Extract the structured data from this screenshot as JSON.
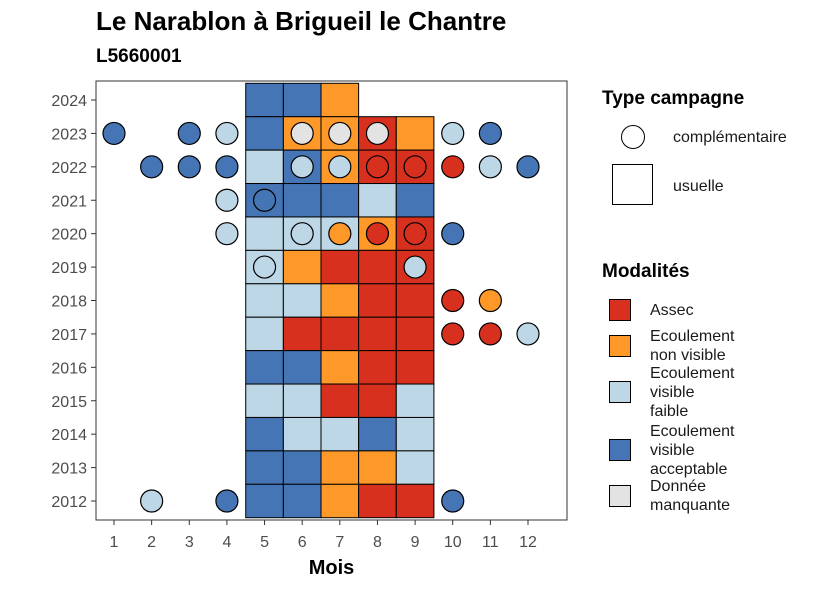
{
  "title": "Le Narablon à Brigueil le Chantre",
  "subtitle": "L5660001",
  "chart_data": {
    "type": "heatmap",
    "title": "Le Narablon à Brigueil le Chantre",
    "subtitle": "L5660001",
    "xlabel": "Mois",
    "ylabel": "",
    "x_ticks": [
      1,
      2,
      3,
      4,
      5,
      6,
      7,
      8,
      9,
      10,
      11,
      12
    ],
    "y_ticks": [
      2012,
      2013,
      2014,
      2015,
      2016,
      2017,
      2018,
      2019,
      2020,
      2021,
      2022,
      2023,
      2024
    ],
    "legend_position": "right",
    "grid": false,
    "categories": {
      "assec": {
        "label": "Assec",
        "color": "#D7301F"
      },
      "ecoulement_non_visible": {
        "label": "Ecoulement non visible",
        "color": "#FE9929"
      },
      "ecoulement_visible_faible": {
        "label": "Ecoulement visible faible",
        "color": "#BDD7E7"
      },
      "ecoulement_visible_acceptable": {
        "label": "Ecoulement visible acceptable",
        "color": "#4575B4"
      },
      "donnee_manquante": {
        "label": "Donnée manquante",
        "color": "#E3E3E3"
      }
    },
    "legend_modalites_title": "Modalités",
    "legend_modalites": [
      {
        "key": "assec",
        "lines": [
          "Assec"
        ]
      },
      {
        "key": "ecoulement_non_visible",
        "lines": [
          "Ecoulement",
          "non visible"
        ]
      },
      {
        "key": "ecoulement_visible_faible",
        "lines": [
          "Ecoulement",
          "visible",
          "faible"
        ]
      },
      {
        "key": "ecoulement_visible_acceptable",
        "lines": [
          "Ecoulement",
          "visible",
          "acceptable"
        ]
      },
      {
        "key": "donnee_manquante",
        "lines": [
          "Donnée",
          "manquante"
        ]
      }
    ],
    "legend_campagne_title": "Type campagne",
    "legend_campagne": [
      {
        "shape": "circle",
        "label": "complémentaire"
      },
      {
        "shape": "square",
        "label": "usuelle"
      }
    ],
    "usuelle": [
      {
        "year": 2024,
        "months": [
          [
            "ecoulement_visible_acceptable",
            5
          ],
          [
            "ecoulement_visible_acceptable",
            6
          ],
          [
            "ecoulement_non_visible",
            7
          ]
        ]
      },
      {
        "year": 2023,
        "months": [
          [
            "ecoulement_visible_acceptable",
            5
          ],
          [
            "ecoulement_non_visible",
            6
          ],
          [
            "ecoulement_non_visible",
            7
          ],
          [
            "assec",
            8
          ],
          [
            "ecoulement_non_visible",
            9
          ]
        ]
      },
      {
        "year": 2022,
        "months": [
          [
            "ecoulement_visible_faible",
            5
          ],
          [
            "ecoulement_visible_acceptable",
            6
          ],
          [
            "ecoulement_non_visible",
            7
          ],
          [
            "assec",
            8
          ],
          [
            "assec",
            9
          ]
        ]
      },
      {
        "year": 2021,
        "months": [
          [
            "ecoulement_visible_acceptable",
            5
          ],
          [
            "ecoulement_visible_acceptable",
            6
          ],
          [
            "ecoulement_visible_acceptable",
            7
          ],
          [
            "ecoulement_visible_faible",
            8
          ],
          [
            "ecoulement_visible_acceptable",
            9
          ]
        ]
      },
      {
        "year": 2020,
        "months": [
          [
            "ecoulement_visible_faible",
            5
          ],
          [
            "ecoulement_visible_faible",
            6
          ],
          [
            "ecoulement_visible_faible",
            7
          ],
          [
            "ecoulement_non_visible",
            8
          ],
          [
            "assec",
            9
          ]
        ]
      },
      {
        "year": 2019,
        "months": [
          [
            "ecoulement_visible_faible",
            5
          ],
          [
            "ecoulement_non_visible",
            6
          ],
          [
            "assec",
            7
          ],
          [
            "assec",
            8
          ],
          [
            "assec",
            9
          ]
        ]
      },
      {
        "year": 2018,
        "months": [
          [
            "ecoulement_visible_faible",
            5
          ],
          [
            "ecoulement_visible_faible",
            6
          ],
          [
            "ecoulement_non_visible",
            7
          ],
          [
            "assec",
            8
          ],
          [
            "assec",
            9
          ]
        ]
      },
      {
        "year": 2017,
        "months": [
          [
            "ecoulement_visible_faible",
            5
          ],
          [
            "assec",
            6
          ],
          [
            "assec",
            7
          ],
          [
            "assec",
            8
          ],
          [
            "assec",
            9
          ]
        ]
      },
      {
        "year": 2016,
        "months": [
          [
            "ecoulement_visible_acceptable",
            5
          ],
          [
            "ecoulement_visible_acceptable",
            6
          ],
          [
            "ecoulement_non_visible",
            7
          ],
          [
            "assec",
            8
          ],
          [
            "assec",
            9
          ]
        ]
      },
      {
        "year": 2015,
        "months": [
          [
            "ecoulement_visible_faible",
            5
          ],
          [
            "ecoulement_visible_faible",
            6
          ],
          [
            "assec",
            7
          ],
          [
            "assec",
            8
          ],
          [
            "ecoulement_visible_faible",
            9
          ]
        ]
      },
      {
        "year": 2014,
        "months": [
          [
            "ecoulement_visible_acceptable",
            5
          ],
          [
            "ecoulement_visible_faible",
            6
          ],
          [
            "ecoulement_visible_faible",
            7
          ],
          [
            "ecoulement_visible_acceptable",
            8
          ],
          [
            "ecoulement_visible_faible",
            9
          ]
        ]
      },
      {
        "year": 2013,
        "months": [
          [
            "ecoulement_visible_acceptable",
            5
          ],
          [
            "ecoulement_visible_acceptable",
            6
          ],
          [
            "ecoulement_non_visible",
            7
          ],
          [
            "ecoulement_non_visible",
            8
          ],
          [
            "ecoulement_visible_faible",
            9
          ]
        ]
      },
      {
        "year": 2012,
        "months": [
          [
            "ecoulement_visible_acceptable",
            5
          ],
          [
            "ecoulement_visible_acceptable",
            6
          ],
          [
            "ecoulement_non_visible",
            7
          ],
          [
            "assec",
            8
          ],
          [
            "assec",
            9
          ]
        ]
      }
    ],
    "complementaire": [
      {
        "year": 2023,
        "month": 1,
        "key": "ecoulement_visible_acceptable"
      },
      {
        "year": 2023,
        "month": 3,
        "key": "ecoulement_visible_acceptable"
      },
      {
        "year": 2023,
        "month": 4,
        "key": "ecoulement_visible_faible"
      },
      {
        "year": 2023,
        "month": 6,
        "key": "donnee_manquante"
      },
      {
        "year": 2023,
        "month": 7,
        "key": "donnee_manquante"
      },
      {
        "year": 2023,
        "month": 8,
        "key": "donnee_manquante"
      },
      {
        "year": 2023,
        "month": 10,
        "key": "ecoulement_visible_faible"
      },
      {
        "year": 2023,
        "month": 11,
        "key": "ecoulement_visible_acceptable"
      },
      {
        "year": 2022,
        "month": 2,
        "key": "ecoulement_visible_acceptable"
      },
      {
        "year": 2022,
        "month": 3,
        "key": "ecoulement_visible_acceptable"
      },
      {
        "year": 2022,
        "month": 4,
        "key": "ecoulement_visible_acceptable"
      },
      {
        "year": 2022,
        "month": 6,
        "key": "ecoulement_visible_faible"
      },
      {
        "year": 2022,
        "month": 7,
        "key": "ecoulement_visible_faible"
      },
      {
        "year": 2022,
        "month": 8,
        "key": "assec"
      },
      {
        "year": 2022,
        "month": 9,
        "key": "assec"
      },
      {
        "year": 2022,
        "month": 10,
        "key": "assec"
      },
      {
        "year": 2022,
        "month": 11,
        "key": "ecoulement_visible_faible"
      },
      {
        "year": 2022,
        "month": 12,
        "key": "ecoulement_visible_acceptable"
      },
      {
        "year": 2021,
        "month": 4,
        "key": "ecoulement_visible_faible"
      },
      {
        "year": 2021,
        "month": 5,
        "key": "ecoulement_visible_acceptable"
      },
      {
        "year": 2020,
        "month": 4,
        "key": "ecoulement_visible_faible"
      },
      {
        "year": 2020,
        "month": 6,
        "key": "ecoulement_visible_faible"
      },
      {
        "year": 2020,
        "month": 7,
        "key": "ecoulement_non_visible"
      },
      {
        "year": 2020,
        "month": 8,
        "key": "assec"
      },
      {
        "year": 2020,
        "month": 9,
        "key": "assec"
      },
      {
        "year": 2020,
        "month": 10,
        "key": "ecoulement_visible_acceptable"
      },
      {
        "year": 2019,
        "month": 5,
        "key": "ecoulement_visible_faible"
      },
      {
        "year": 2019,
        "month": 9,
        "key": "ecoulement_visible_faible"
      },
      {
        "year": 2018,
        "month": 10,
        "key": "assec"
      },
      {
        "year": 2018,
        "month": 11,
        "key": "ecoulement_non_visible"
      },
      {
        "year": 2017,
        "month": 10,
        "key": "assec"
      },
      {
        "year": 2017,
        "month": 11,
        "key": "assec"
      },
      {
        "year": 2017,
        "month": 12,
        "key": "ecoulement_visible_faible"
      },
      {
        "year": 2012,
        "month": 2,
        "key": "ecoulement_visible_faible"
      },
      {
        "year": 2012,
        "month": 4,
        "key": "ecoulement_visible_acceptable"
      },
      {
        "year": 2012,
        "month": 10,
        "key": "ecoulement_visible_acceptable"
      }
    ]
  }
}
